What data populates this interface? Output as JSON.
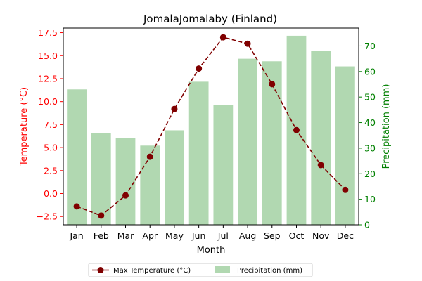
{
  "chart_data": {
    "type": "bar+line",
    "title": "JomalaJomalaby (Finland)",
    "xlabel": "Month",
    "ylabel_left": "Temperature (°C)",
    "ylabel_right": "Precipitation (mm)",
    "categories": [
      "Jan",
      "Feb",
      "Mar",
      "Apr",
      "May",
      "Jun",
      "Jul",
      "Aug",
      "Sep",
      "Oct",
      "Nov",
      "Dec"
    ],
    "series": [
      {
        "name": "Max Temperature (°C)",
        "type": "line",
        "axis": "left",
        "color": "#800000",
        "values": [
          -1.4,
          -2.4,
          -0.2,
          4.0,
          9.2,
          13.6,
          17.0,
          16.3,
          11.9,
          6.9,
          3.1,
          0.4
        ]
      },
      {
        "name": "Precipitation (mm)",
        "type": "bar",
        "axis": "right",
        "color": "#b1d8b1",
        "values": [
          53,
          36,
          34,
          31,
          37,
          56,
          47,
          65,
          64,
          74,
          68,
          62
        ]
      }
    ],
    "ylim_left": [
      -3.4,
      18.0
    ],
    "ylim_right": [
      0,
      77
    ],
    "yticks_left": [
      "−2.5",
      "0.0",
      "2.5",
      "5.0",
      "7.5",
      "10.0",
      "12.5",
      "15.0",
      "17.5"
    ],
    "yticks_right": [
      "0",
      "10",
      "20",
      "30",
      "40",
      "50",
      "60",
      "70"
    ],
    "left_axis_color": "#ff0000",
    "right_axis_color": "#008000",
    "grid": false,
    "legend_position": "bottom-center"
  }
}
